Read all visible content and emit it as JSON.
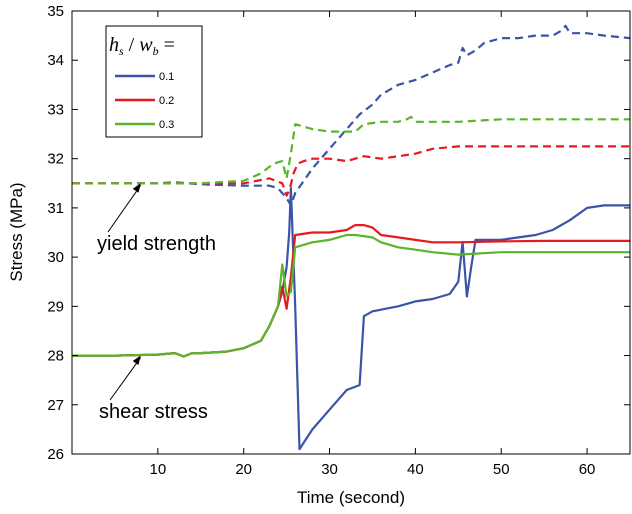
{
  "chart_data": {
    "type": "line",
    "xlabel": "Time (second)",
    "ylabel": "Stress (MPa)",
    "xlim": [
      0,
      65
    ],
    "ylim": [
      26,
      35
    ],
    "xticks": [
      10,
      20,
      30,
      40,
      50,
      60
    ],
    "yticks": [
      26,
      27,
      28,
      29,
      30,
      31,
      32,
      33,
      34,
      35
    ],
    "grid": false,
    "legend": {
      "placement": "top-left",
      "title_parts": {
        "h": "h",
        "h_sub": "s",
        "slash": " / ",
        "w": "w",
        "w_sub": "b",
        "eq": " ="
      },
      "entries": [
        "0.1",
        "0.2",
        "0.3"
      ]
    },
    "annotations": [
      {
        "text": "yield strength",
        "points_to": [
          8,
          31.5
        ]
      },
      {
        "text": "shear stress",
        "points_to": [
          8,
          28.0
        ]
      }
    ],
    "series": [
      {
        "name": "0.1",
        "color": "#3a55a8",
        "style": "dashed",
        "quantity": "yield strength",
        "x": [
          0,
          5,
          10,
          12,
          15,
          20,
          23,
          24,
          25,
          25.5,
          26,
          27,
          28,
          30,
          32,
          33.5,
          35,
          36,
          38,
          40,
          42,
          44,
          45,
          45.5,
          46,
          47,
          48,
          50,
          52,
          54,
          56,
          57,
          57.5,
          58,
          60,
          62,
          65
        ],
        "y": [
          31.5,
          31.5,
          31.5,
          31.52,
          31.48,
          31.45,
          31.45,
          31.4,
          31.2,
          31.05,
          31.3,
          31.55,
          31.8,
          32.2,
          32.6,
          32.9,
          33.1,
          33.3,
          33.5,
          33.6,
          33.75,
          33.9,
          33.95,
          34.25,
          34.1,
          34.2,
          34.35,
          34.45,
          34.45,
          34.5,
          34.5,
          34.6,
          34.7,
          34.55,
          34.55,
          34.5,
          34.45
        ]
      },
      {
        "name": "0.2",
        "color": "#e8191e",
        "style": "dashed",
        "quantity": "yield strength",
        "x": [
          0,
          5,
          10,
          15,
          20,
          23,
          24.5,
          25,
          25.4,
          25.8,
          26.3,
          27,
          28,
          30,
          32,
          34,
          36,
          38,
          40,
          42,
          45,
          50,
          55,
          60,
          65
        ],
        "y": [
          31.5,
          31.5,
          31.5,
          31.5,
          31.5,
          31.6,
          31.5,
          31.25,
          31.4,
          31.7,
          31.9,
          31.95,
          32.0,
          32.0,
          31.95,
          32.05,
          32.0,
          32.05,
          32.1,
          32.2,
          32.25,
          32.25,
          32.25,
          32.25,
          32.25
        ]
      },
      {
        "name": "0.3",
        "color": "#5ab52a",
        "style": "dashed",
        "quantity": "yield strength",
        "x": [
          0,
          5,
          10,
          15,
          20,
          22,
          23.5,
          24.5,
          25,
          25.5,
          26,
          27,
          28,
          30,
          32,
          33,
          34,
          36,
          38,
          39,
          39.5,
          40,
          42,
          45,
          50,
          55,
          60,
          65
        ],
        "y": [
          31.5,
          31.5,
          31.5,
          31.5,
          31.55,
          31.7,
          31.9,
          31.95,
          31.6,
          32.1,
          32.7,
          32.65,
          32.6,
          32.55,
          32.55,
          32.55,
          32.7,
          32.75,
          32.75,
          32.8,
          32.85,
          32.75,
          32.75,
          32.75,
          32.8,
          32.8,
          32.8,
          32.8
        ]
      },
      {
        "name": "0.1",
        "color": "#3a55a8",
        "style": "solid",
        "quantity": "shear stress",
        "x": [
          0,
          5,
          10,
          12,
          13,
          14,
          15,
          18,
          20,
          22,
          23,
          24,
          24.5,
          25,
          25.3,
          25.5,
          26,
          26.5,
          28,
          30,
          32,
          33.5,
          34,
          35,
          38,
          40,
          42,
          44,
          45,
          45.5,
          46,
          46.5,
          47,
          50,
          52,
          54,
          56,
          58,
          60,
          62,
          65
        ],
        "y": [
          28.0,
          28.0,
          28.02,
          28.05,
          27.98,
          28.05,
          28.05,
          28.08,
          28.15,
          28.3,
          28.6,
          29.0,
          29.3,
          29.8,
          30.5,
          31.4,
          29.0,
          26.1,
          26.5,
          26.9,
          27.3,
          27.4,
          28.8,
          28.9,
          29.0,
          29.1,
          29.15,
          29.25,
          29.5,
          30.3,
          29.2,
          29.8,
          30.35,
          30.35,
          30.4,
          30.45,
          30.55,
          30.75,
          31.0,
          31.05,
          31.05
        ]
      },
      {
        "name": "0.2",
        "color": "#e8191e",
        "style": "solid",
        "quantity": "shear stress",
        "x": [
          0,
          5,
          10,
          12,
          13,
          14,
          15,
          18,
          20,
          22,
          23,
          24,
          24.5,
          25,
          25.5,
          26,
          28,
          30,
          32,
          33,
          34,
          35,
          36,
          38,
          40,
          42,
          45,
          50,
          55,
          60,
          65
        ],
        "y": [
          28.0,
          28.0,
          28.02,
          28.05,
          27.98,
          28.05,
          28.05,
          28.08,
          28.15,
          28.3,
          28.6,
          29.0,
          29.4,
          28.95,
          29.6,
          30.45,
          30.5,
          30.5,
          30.55,
          30.65,
          30.65,
          30.6,
          30.45,
          30.4,
          30.35,
          30.3,
          30.3,
          30.32,
          30.33,
          30.33,
          30.33
        ]
      },
      {
        "name": "0.3",
        "color": "#5ab52a",
        "style": "solid",
        "quantity": "shear stress",
        "x": [
          0,
          5,
          10,
          12,
          13,
          14,
          15,
          18,
          20,
          22,
          23,
          24,
          24.5,
          25,
          25.5,
          26,
          28,
          30,
          32,
          33,
          35,
          36,
          38,
          40,
          42,
          45,
          50,
          55,
          60,
          65
        ],
        "y": [
          28.0,
          28.0,
          28.02,
          28.05,
          27.98,
          28.05,
          28.05,
          28.08,
          28.15,
          28.3,
          28.6,
          29.0,
          29.85,
          29.2,
          29.3,
          30.2,
          30.3,
          30.35,
          30.45,
          30.45,
          30.4,
          30.3,
          30.2,
          30.15,
          30.1,
          30.05,
          30.1,
          30.1,
          30.1,
          30.1
        ]
      }
    ]
  }
}
